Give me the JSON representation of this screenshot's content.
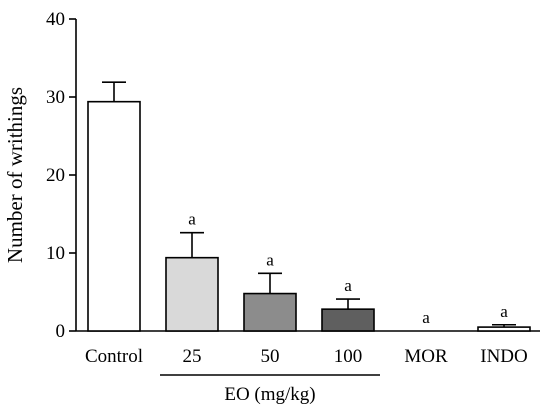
{
  "chart_data": {
    "type": "bar",
    "title": "",
    "xlabel": "",
    "ylabel": "Number of writhings",
    "ylim": [
      0,
      40
    ],
    "yticks": [
      0,
      10,
      20,
      30,
      40
    ],
    "categories": [
      "Control",
      "25",
      "50",
      "100",
      "MOR",
      "INDO"
    ],
    "values": [
      29.4,
      9.4,
      4.8,
      2.8,
      0,
      0.5
    ],
    "errors": [
      2.5,
      3.2,
      2.6,
      1.3,
      0,
      0.3
    ],
    "significance": [
      "",
      "a",
      "a",
      "a",
      "a",
      "a"
    ],
    "bar_colors": [
      "#ffffff",
      "#d9d9d9",
      "#8c8c8c",
      "#5f5f5f",
      "#ffffff",
      "#ffffff"
    ],
    "group_label": {
      "text": "EO (mg/kg)",
      "spans": [
        "25",
        "100"
      ]
    },
    "grid": false
  }
}
